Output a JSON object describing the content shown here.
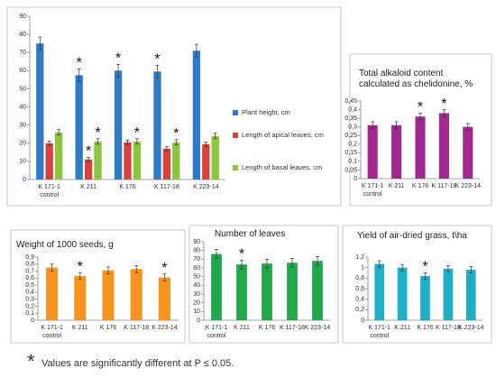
{
  "chart_data": [
    {
      "type": "bar",
      "categories": [
        "K 171-1 control",
        "K 211",
        "K 176",
        "K 117-18",
        "K 223-14"
      ],
      "ylim": [
        0,
        90
      ],
      "yticks": [
        0,
        10,
        20,
        30,
        40,
        50,
        60,
        70,
        80,
        90
      ],
      "marker": "*",
      "series": [
        {
          "name": "Plant height, cm",
          "color": "#2f7cc4",
          "values": [
            75,
            57.5,
            60,
            59.5,
            71
          ],
          "errors": [
            3.5,
            3.5,
            3.5,
            3.5,
            3.5
          ],
          "significant": [
            false,
            true,
            true,
            true,
            false
          ]
        },
        {
          "name": "Length of apical leaves, cm",
          "color": "#d9413d",
          "values": [
            20,
            11,
            20.5,
            17,
            19.5
          ],
          "errors": [
            1.2,
            1.2,
            1.2,
            1.2,
            1.2
          ],
          "significant": [
            false,
            true,
            false,
            false,
            false
          ]
        },
        {
          "name": "Length of basal leaves, cm",
          "color": "#8cc63e",
          "values": [
            26,
            21,
            21,
            20.5,
            24
          ],
          "errors": [
            1.5,
            1.5,
            1.5,
            1.5,
            1.5
          ],
          "significant": [
            false,
            true,
            true,
            true,
            false
          ]
        }
      ]
    },
    {
      "type": "bar",
      "title": "Total alkaloid content calculated as chelidonine, %",
      "categories": [
        "K 171-1 control",
        "K 211",
        "K 176",
        "K 117-18",
        "K 223-14"
      ],
      "color": "#a0288e",
      "marker": "*",
      "values": [
        0.31,
        0.31,
        0.36,
        0.38,
        0.3
      ],
      "errors": [
        0.02,
        0.02,
        0.02,
        0.02,
        0.02
      ],
      "significant": [
        false,
        false,
        true,
        true,
        false
      ],
      "ylim": [
        0,
        0.45
      ],
      "yticks": [
        0,
        {
          "value": 0.05,
          "label": "0,05"
        },
        {
          "value": 0.1,
          "label": "0,1"
        },
        {
          "value": 0.15,
          "label": "0,15"
        },
        {
          "value": 0.2,
          "label": "0,2"
        },
        {
          "value": 0.25,
          "label": "0,25"
        },
        {
          "value": 0.3,
          "label": "0,3"
        },
        {
          "value": 0.35,
          "label": "0,35"
        },
        {
          "value": 0.4,
          "label": "0,4"
        },
        {
          "value": 0.45,
          "label": "0,45"
        }
      ]
    },
    {
      "type": "bar",
      "title": "Weight of 1000 seeds, g",
      "categories": [
        "K 171-1 control",
        "K 211",
        "K 176",
        "K 117-18",
        "K 223-14"
      ],
      "color": "#f7941d",
      "marker": "*",
      "values": [
        0.75,
        0.63,
        0.71,
        0.73,
        0.61
      ],
      "errors": [
        0.05,
        0.05,
        0.05,
        0.05,
        0.05
      ],
      "significant": [
        false,
        true,
        false,
        false,
        true
      ],
      "ylim": [
        0,
        0.9
      ],
      "yticks": [
        0,
        {
          "value": 0.1,
          "label": "0,1"
        },
        {
          "value": 0.2,
          "label": "0,2"
        },
        {
          "value": 0.3,
          "label": "0,3"
        },
        {
          "value": 0.4,
          "label": "0,4"
        },
        {
          "value": 0.5,
          "label": "0,5"
        },
        {
          "value": 0.6,
          "label": "0,6"
        },
        {
          "value": 0.7,
          "label": "0,7"
        },
        {
          "value": 0.8,
          "label": "0,8"
        },
        {
          "value": 0.9,
          "label": "0,9"
        }
      ]
    },
    {
      "type": "bar",
      "title": "Number of leaves",
      "categories": [
        "K 171-1 control",
        "K 211",
        "K 176",
        "K 117-18",
        "K 223-14"
      ],
      "color": "#21a84a",
      "marker": "*",
      "values": [
        76,
        64,
        65,
        66,
        68
      ],
      "errors": [
        5,
        5,
        5,
        5,
        5
      ],
      "significant": [
        false,
        true,
        false,
        false,
        false
      ],
      "ylim": [
        0,
        90
      ],
      "yticks": [
        0,
        10,
        20,
        30,
        40,
        50,
        60,
        70,
        80,
        90
      ]
    },
    {
      "type": "bar",
      "title": "Yield of air-dried grass, t\\ha",
      "categories": [
        "K 171-1 control",
        "K 211",
        "K 176",
        "K 117-18",
        "K 223-14"
      ],
      "color": "#1fb0c8",
      "marker": "*",
      "values": [
        1.07,
        1.0,
        0.84,
        0.98,
        0.96
      ],
      "errors": [
        0.06,
        0.06,
        0.06,
        0.06,
        0.06
      ],
      "significant": [
        false,
        false,
        true,
        false,
        false
      ],
      "ylim": [
        0,
        1.2
      ],
      "yticks": [
        0,
        {
          "value": 0.2,
          "label": "0,2"
        },
        {
          "value": 0.4,
          "label": "0,4"
        },
        {
          "value": 0.6,
          "label": "0,6"
        },
        {
          "value": 0.8,
          "label": "0,8"
        },
        1,
        {
          "value": 1.2,
          "label": "1,2"
        }
      ]
    }
  ],
  "footnote": {
    "marker": "*",
    "text": "Values are significantly different at P ≤ 0.05."
  }
}
